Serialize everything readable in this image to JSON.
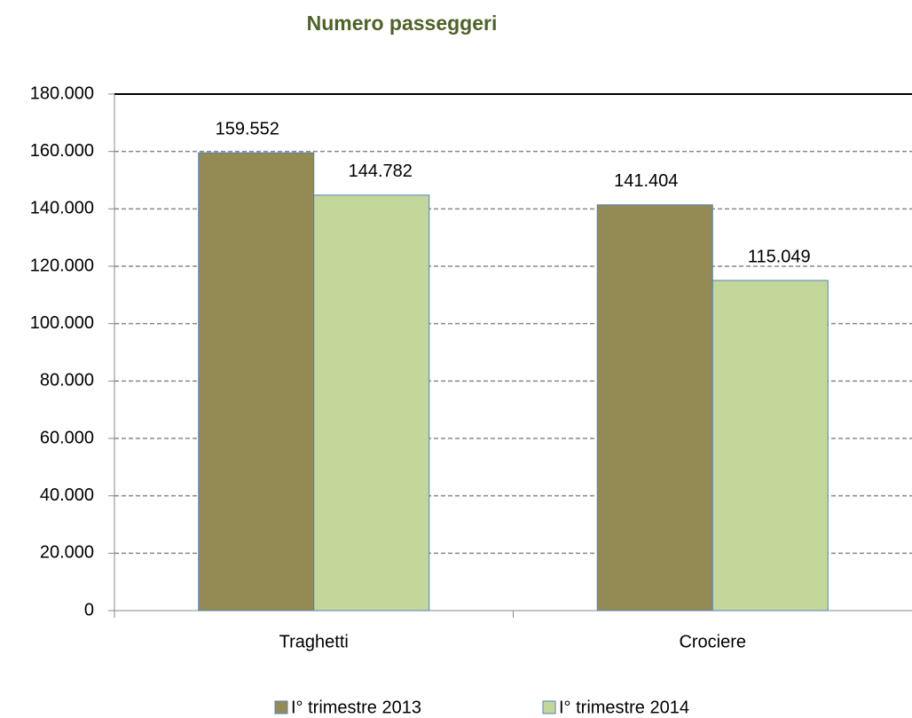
{
  "chart_data": {
    "type": "bar",
    "title": "Numero passeggeri",
    "categories": [
      "Traghetti",
      "Crociere"
    ],
    "series": [
      {
        "name": "I° trimestre 2013",
        "color": "#948a54",
        "values": [
          159552,
          141404
        ],
        "value_labels": [
          "159.552",
          "141.404"
        ]
      },
      {
        "name": "I° trimestre 2014",
        "color": "#c4d79b",
        "values": [
          144782,
          115049
        ],
        "value_labels": [
          "144.782",
          "115.049"
        ]
      }
    ],
    "ylim": [
      0,
      180000
    ],
    "yticks": [
      0,
      {
        "value": 20000,
        "label": "20.000"
      },
      {
        "value": 40000,
        "label": "40.000"
      },
      {
        "value": 60000,
        "label": "60.000"
      },
      {
        "value": 80000,
        "label": "80.000"
      },
      {
        "value": 100000,
        "label": "100.000"
      },
      {
        "value": 120000,
        "label": "120.000"
      },
      {
        "value": 140000,
        "label": "140.000"
      },
      {
        "value": 160000,
        "label": "160.000"
      },
      {
        "value": 180000,
        "label": "180.000"
      }
    ],
    "grid": true,
    "legend": "bottom"
  }
}
